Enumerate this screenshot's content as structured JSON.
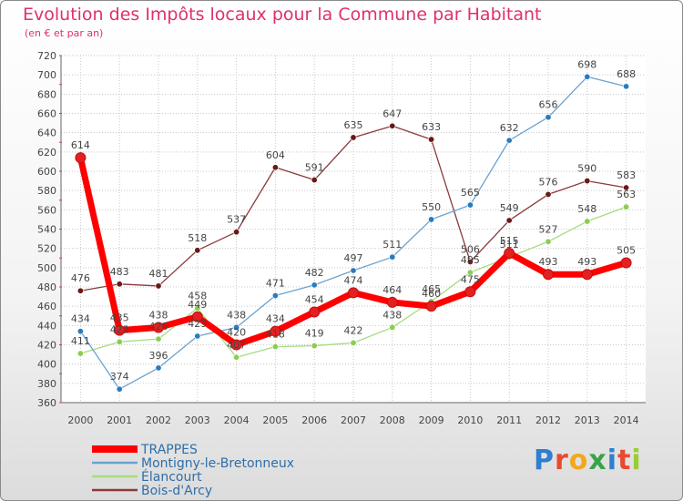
{
  "title": "Evolution des Impôts locaux pour la Commune par Habitant",
  "subtitle": "(en € et par an)",
  "logo": {
    "text": "Proxiti",
    "letters": [
      {
        "ch": "P",
        "color": "#2f7fd0"
      },
      {
        "ch": "r",
        "color": "#e84a2f"
      },
      {
        "ch": "o",
        "color": "#f2a81d"
      },
      {
        "ch": "x",
        "color": "#3aa34a"
      },
      {
        "ch": "i",
        "color": "#2f7fd0"
      },
      {
        "ch": "t",
        "color": "#e84a2f"
      },
      {
        "ch": "i",
        "color": "#9acd32"
      }
    ]
  },
  "chart_data": {
    "type": "line",
    "title": "Evolution des Impôts locaux pour la Commune par Habitant",
    "x": [
      "2000",
      "2001",
      "2002",
      "2003",
      "2004",
      "2005",
      "2006",
      "2007",
      "2008",
      "2009",
      "2010",
      "2011",
      "2012",
      "2013",
      "2014"
    ],
    "ylim": [
      360,
      720
    ],
    "yticks": [
      360,
      380,
      400,
      420,
      440,
      460,
      480,
      500,
      520,
      540,
      560,
      580,
      600,
      620,
      640,
      660,
      680,
      700,
      720
    ],
    "grid": true,
    "legend_position": "bottom-left",
    "series": [
      {
        "name": "TRAPPES",
        "color": "#ff0000",
        "marker_color": "#e52020",
        "width": 7,
        "values": [
          614,
          435,
          438,
          449,
          420,
          434,
          454,
          474,
          464,
          460,
          475,
          515,
          493,
          493,
          505
        ],
        "labels": [
          "614",
          "435",
          "438",
          "449",
          "420",
          "434",
          "454",
          "474",
          "464",
          "460",
          "475",
          "515",
          "493",
          "493",
          "505"
        ]
      },
      {
        "name": "Montigny-le-Bretonneux",
        "color": "#6aa2cf",
        "marker_color": "#2a7bbf",
        "width": 1.3,
        "values": [
          434,
          374,
          396,
          429,
          438,
          471,
          482,
          497,
          511,
          550,
          565,
          632,
          656,
          698,
          688
        ],
        "labels": [
          "434",
          "374",
          "396",
          "429",
          "438",
          "471",
          "482",
          "497",
          "511",
          "550",
          "565",
          "632",
          "656",
          "698",
          "688"
        ]
      },
      {
        "name": "Élancourt",
        "color": "#a6dc80",
        "marker_color": "#8ccd4f",
        "width": 1.3,
        "values": [
          411,
          423,
          426,
          458,
          407,
          418,
          419,
          422,
          438,
          465,
          495,
          511,
          527,
          548,
          563
        ],
        "labels": [
          "411",
          "423",
          "426",
          "458",
          "407",
          "418",
          "419",
          "422",
          "438",
          "465",
          "495",
          "511",
          "527",
          "548",
          "563"
        ]
      },
      {
        "name": "Bois-d'Arcy",
        "color": "#8a3a3a",
        "marker_color": "#6a1818",
        "width": 1.3,
        "values": [
          476,
          483,
          481,
          518,
          537,
          604,
          591,
          635,
          647,
          633,
          506,
          549,
          576,
          590,
          583
        ],
        "labels": [
          "476",
          "483",
          "481",
          "518",
          "537",
          "604",
          "591",
          "635",
          "647",
          "633",
          "506",
          "549",
          "576",
          "590",
          "583"
        ]
      }
    ]
  }
}
